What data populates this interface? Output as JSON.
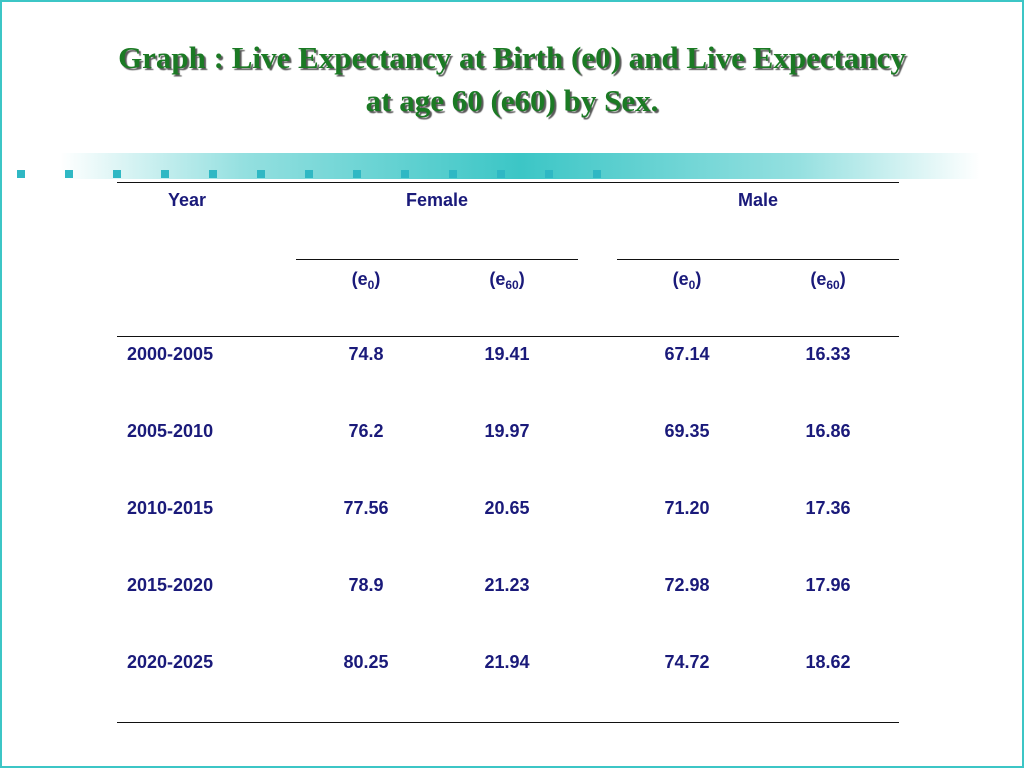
{
  "title": {
    "line1": "Graph : Live Expectancy at Birth (e0) and Live Expectancy",
    "line2": "at age 60 (e60) by Sex."
  },
  "table": {
    "header": {
      "year": "Year",
      "female": "Female",
      "male": "Male",
      "sub_columns": [
        {
          "base": "e",
          "sub": "0"
        },
        {
          "base": "e",
          "sub": "60"
        },
        {
          "base": "e",
          "sub": "0"
        },
        {
          "base": "e",
          "sub": "60"
        }
      ]
    },
    "rows": [
      {
        "year": "2000-2005",
        "female_e0": "74.8",
        "female_e60": "19.41",
        "male_e0": "67.14",
        "male_e60": "16.33"
      },
      {
        "year": "2005-2010",
        "female_e0": "76.2",
        "female_e60": "19.97",
        "male_e0": "69.35",
        "male_e60": "16.86"
      },
      {
        "year": "2010-2015",
        "female_e0": "77.56",
        "female_e60": "20.65",
        "male_e0": "71.20",
        "male_e60": "17.36"
      },
      {
        "year": "2015-2020",
        "female_e0": "78.9",
        "female_e60": "21.23",
        "male_e0": "72.98",
        "male_e60": "17.96"
      },
      {
        "year": "2020-2025",
        "female_e0": "80.25",
        "female_e60": "21.94",
        "male_e0": "74.72",
        "male_e60": "18.62"
      }
    ]
  },
  "colors": {
    "title_text": "#1b7a24",
    "table_text": "#1a1a7a",
    "accent": "#3cc6c6"
  }
}
